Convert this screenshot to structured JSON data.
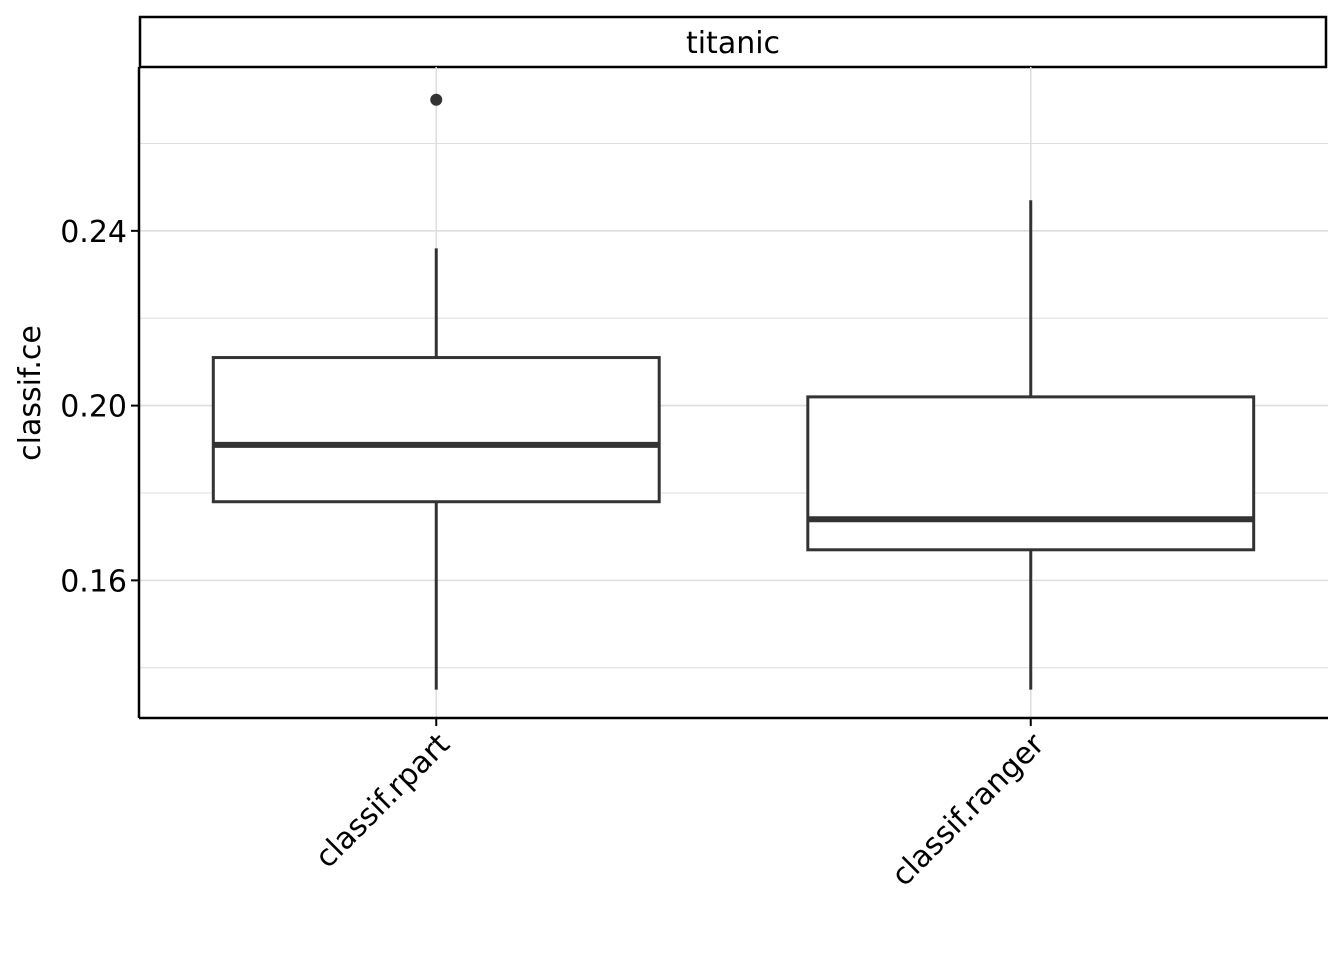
{
  "chart_data": {
    "type": "boxplot",
    "facet": "titanic",
    "ylabel": "classif.ce",
    "xlabel": "",
    "categories": [
      "classif.rpart",
      "classif.ranger"
    ],
    "boxes": [
      {
        "name": "classif.rpart",
        "whisker_low": 0.135,
        "q1": 0.178,
        "median": 0.191,
        "q3": 0.211,
        "whisker_high": 0.236,
        "outliers": [
          0.27
        ]
      },
      {
        "name": "classif.ranger",
        "whisker_low": 0.135,
        "q1": 0.167,
        "median": 0.174,
        "q3": 0.202,
        "whisker_high": 0.247,
        "outliers": []
      }
    ],
    "ylim": [
      0.1285,
      0.2775
    ],
    "yticks": [
      "0.16",
      "0.20",
      "0.24"
    ],
    "grid": true,
    "colors": {
      "box_stroke": "#333333",
      "grid": "#dedede",
      "frame": "#000000"
    }
  }
}
